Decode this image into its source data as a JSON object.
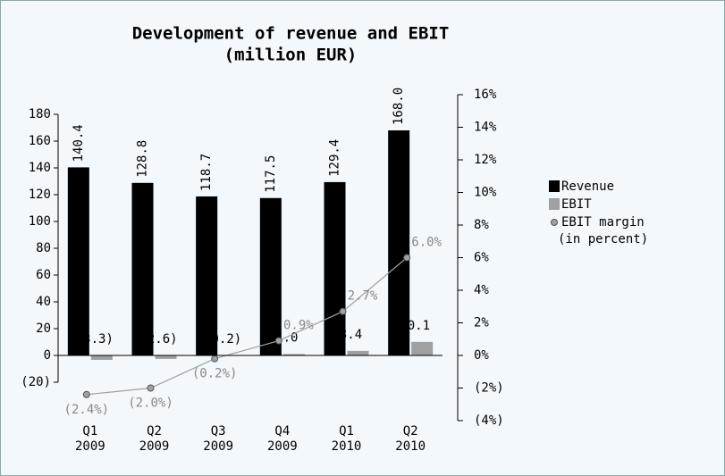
{
  "chart_data": {
    "type": "bar",
    "title": "Development of revenue and EBIT",
    "subtitle": "(million EUR)",
    "categories": [
      "Q1 2009",
      "Q2 2009",
      "Q3 2009",
      "Q4 2009",
      "Q1 2010",
      "Q2 2010"
    ],
    "series": [
      {
        "name": "Revenue",
        "color": "#000000",
        "values": [
          140.4,
          128.8,
          118.7,
          117.5,
          129.4,
          168.0
        ],
        "value_labels": [
          "140.4",
          "128.8",
          "118.7",
          "117.5",
          "129.4",
          "168.0"
        ]
      },
      {
        "name": "EBIT",
        "color": "#a0a0a0",
        "values": [
          -3.3,
          -2.6,
          -0.2,
          1.0,
          3.4,
          10.1
        ],
        "value_labels": [
          "(3.3)",
          "(2.6)",
          "(0.2)",
          "1.0",
          "3.4",
          "10.1"
        ]
      },
      {
        "name": "EBIT margin (in percent)",
        "color": "#a0a0a0",
        "type": "line",
        "axis": "y2",
        "values": [
          -2.4,
          -2.0,
          -0.2,
          0.9,
          2.7,
          6.0
        ],
        "value_labels": [
          "(2.4%)",
          "(2.0%)",
          "(0.2%)",
          "0.9%",
          "2.7%",
          "6.0%"
        ]
      }
    ],
    "ylim": [
      -48.67,
      194.67
    ],
    "yticks": [
      {
        "value": -20,
        "label": "(20)"
      },
      0,
      20,
      40,
      60,
      80,
      100,
      120,
      140,
      160,
      180
    ],
    "y2lim": [
      -4,
      16
    ],
    "y2ticks": [
      {
        "value": -4,
        "label": "(4%)"
      },
      {
        "value": -2,
        "label": "(2%)"
      },
      {
        "value": 0,
        "label": "0%"
      },
      {
        "value": 2,
        "label": "2%"
      },
      {
        "value": 4,
        "label": "4%"
      },
      {
        "value": 6,
        "label": "6%"
      },
      {
        "value": 8,
        "label": "8%"
      },
      {
        "value": 10,
        "label": "10%"
      },
      {
        "value": 12,
        "label": "12%"
      },
      {
        "value": 14,
        "label": "14%"
      },
      {
        "value": 16,
        "label": "16%"
      }
    ],
    "legend": "right"
  }
}
